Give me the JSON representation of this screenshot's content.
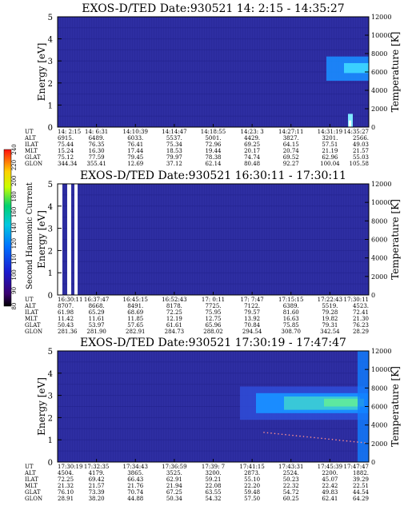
{
  "colorbar": {
    "label": "Second Harmonic Current",
    "ticks": [
      "80",
      "90",
      "100",
      "110",
      "120",
      "140",
      "160",
      "180",
      "200",
      "220",
      "240"
    ]
  },
  "palette": {
    "background": "#2a2a9c",
    "stripe": "#3a3ab0",
    "dark": "#20208a",
    "cyan": "#1a8cff",
    "green": "#5de8a0",
    "yellow": "#ffff66"
  },
  "row_labels": [
    "UT",
    "ALT",
    "ILAT",
    "MLT",
    "GLAT",
    "GLON"
  ],
  "chart_data": [
    {
      "type": "heatmap",
      "title": "EXOS-D/TED   Date:930521  14: 2:15 - 14:35:27",
      "ylabel": "Energy [eV]",
      "y2label": "Temperature [K]",
      "ylim": [
        0,
        5
      ],
      "y2lim": [
        0,
        12000
      ],
      "yticks": [
        "0",
        "1",
        "2",
        "3",
        "4",
        "5"
      ],
      "y2ticks": [
        "0",
        "2000",
        "4000",
        "6000",
        "8000",
        "10000",
        "12000"
      ],
      "table": [
        [
          "14: 2:15",
          "14: 6:31",
          "14:10:39",
          "14:14:47",
          "14:18:55",
          "14:23: 3",
          "14:27:11",
          "14:31:19",
          "14:35:27"
        ],
        [
          "6915.",
          "6489.",
          "6033.",
          "5537.",
          "5001.",
          "4429.",
          "3827.",
          "3201.",
          "2566."
        ],
        [
          "75.44",
          "76.35",
          "76.41",
          "75.34",
          "72.96",
          "69.25",
          "64.15",
          "57.51",
          "49.03"
        ],
        [
          "15.24",
          "16.30",
          "17.44",
          "18.53",
          "19.44",
          "20.17",
          "20.74",
          "21.19",
          "21.57"
        ],
        [
          "75.12",
          "77.59",
          "79.45",
          "79.97",
          "78.38",
          "74.74",
          "69.52",
          "62.96",
          "55.03"
        ],
        [
          "344.34",
          "355.41",
          "12.69",
          "37.12",
          "62.14",
          "80.48",
          "92.27",
          "100.04",
          "105.58"
        ]
      ]
    },
    {
      "type": "heatmap",
      "title": "EXOS-D/TED   Date:930521  16:30:11 - 17:30:11",
      "ylabel": "Energy [eV]",
      "y2label": "Temperature [K]",
      "ylim": [
        0,
        5
      ],
      "y2lim": [
        0,
        12000
      ],
      "yticks": [
        "0",
        "1",
        "2",
        "3",
        "4",
        "5"
      ],
      "y2ticks": [
        "0",
        "2000",
        "4000",
        "6000",
        "8000",
        "10000",
        "12000"
      ],
      "table": [
        [
          "16:30:11",
          "16:37:47",
          "16:45:15",
          "16:52:43",
          "17: 0:11",
          "17: 7:47",
          "17:15:15",
          "17:22:43",
          "17:30:11"
        ],
        [
          "8707.",
          "8668.",
          "8491.",
          "8178.",
          "7725.",
          "7122.",
          "6389.",
          "5519.",
          "4523."
        ],
        [
          "61.98",
          "65.29",
          "68.69",
          "72.25",
          "75.95",
          "79.57",
          "81.60",
          "79.28",
          "72.41"
        ],
        [
          "11.42",
          "11.61",
          "11.85",
          "12.19",
          "12.75",
          "13.92",
          "16.63",
          "19.82",
          "21.30"
        ],
        [
          "50.43",
          "53.97",
          "57.65",
          "61.61",
          "65.96",
          "70.84",
          "75.85",
          "79.31",
          "76.23"
        ],
        [
          "281.36",
          "281.90",
          "282.91",
          "284.73",
          "288.02",
          "294.54",
          "308.70",
          "342.54",
          "28.29"
        ]
      ]
    },
    {
      "type": "heatmap",
      "title": "EXOS-D/TED   Date:930521  17:30:19 - 17:47:47",
      "ylabel": "Energy [eV]",
      "y2label": "Temperature [K]",
      "ylim": [
        0,
        5
      ],
      "y2lim": [
        0,
        12000
      ],
      "yticks": [
        "0",
        "1",
        "2",
        "3",
        "4",
        "5"
      ],
      "y2ticks": [
        "0",
        "2000",
        "4000",
        "6000",
        "8000",
        "10000",
        "12000"
      ],
      "table": [
        [
          "17:30:19",
          "17:32:35",
          "17:34:43",
          "17:36:59",
          "17:39: 7",
          "17:41:15",
          "17:43:31",
          "17:45:39",
          "17:47:47"
        ],
        [
          "4504.",
          "4179.",
          "3865.",
          "3525.",
          "3200.",
          "2873.",
          "2524.",
          "2200.",
          "1882."
        ],
        [
          "72.25",
          "69.42",
          "66.43",
          "62.91",
          "59.21",
          "55.10",
          "50.23",
          "45.07",
          "39.29"
        ],
        [
          "21.32",
          "21.57",
          "21.76",
          "21.94",
          "22.08",
          "22.20",
          "22.32",
          "22.42",
          "22.51"
        ],
        [
          "76.10",
          "73.39",
          "70.74",
          "67.25",
          "63.55",
          "59.48",
          "54.72",
          "49.83",
          "44.54"
        ],
        [
          "28.91",
          "38.20",
          "44.88",
          "50.34",
          "54.32",
          "57.50",
          "60.25",
          "62.41",
          "64.29"
        ]
      ]
    }
  ]
}
